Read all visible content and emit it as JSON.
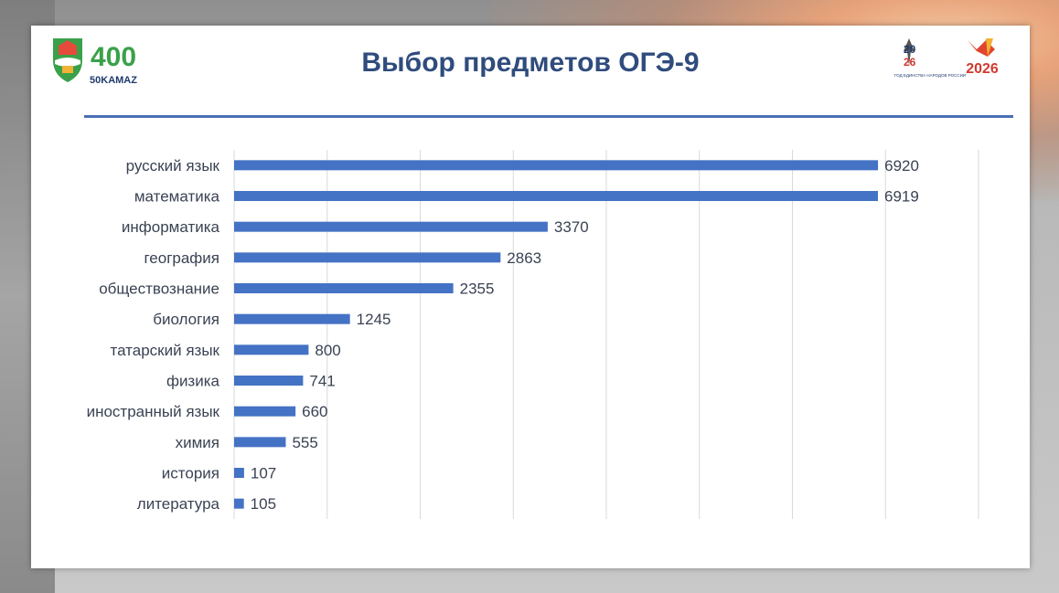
{
  "slide": {
    "title": "Выбор предметов ОГЭ-9"
  },
  "logos": {
    "left_badge_text": "400",
    "left_kamaz_text": "50KAMAZ",
    "right_year_logo_text": "2026",
    "right_badge_text": "2026",
    "caption_1": "ГОД ЕДИНСТВА НАРОДОВ РОССИИ"
  },
  "colors": {
    "bar": "#4472c4",
    "title": "#2f4c7d",
    "rule": "#4a6fb5",
    "grid": "#d9d9d9"
  },
  "chart_data": {
    "type": "bar",
    "orientation": "horizontal",
    "title": "Выбор предметов ОГЭ-9",
    "categories": [
      "русский язык",
      "математика",
      "информатика",
      "география",
      "обществознание",
      "биология",
      "татарский язык",
      "физика",
      "иностранный язык",
      "химия",
      "история",
      "литература"
    ],
    "values": [
      6920,
      6919,
      3370,
      2863,
      2355,
      1245,
      800,
      741,
      660,
      555,
      107,
      105
    ],
    "xlim": [
      0,
      8000
    ],
    "grid": true,
    "data_labels": true
  }
}
